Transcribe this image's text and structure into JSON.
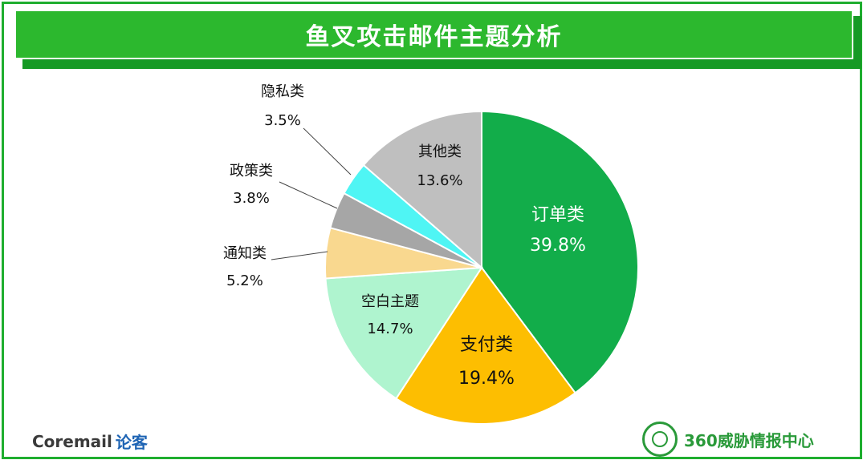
{
  "banner": {
    "title": "鱼叉攻击邮件主题分析"
  },
  "chart_data": {
    "type": "pie",
    "title": "鱼叉攻击邮件主题分析",
    "start_angle_deg": 0,
    "slices": [
      {
        "label": "订单类",
        "value": 39.8,
        "value_label": "39.8%",
        "color": "#12ad4a",
        "text_color": "#ffffff",
        "label_mode": "inside",
        "font_size": 22
      },
      {
        "label": "支付类",
        "value": 19.4,
        "value_label": "19.4%",
        "color": "#fdbe01",
        "text_color": "#111111",
        "label_mode": "inside",
        "font_size": 22
      },
      {
        "label": "空白主题",
        "value": 14.7,
        "value_label": "14.7%",
        "color": "#aff4cf",
        "text_color": "#111111",
        "label_mode": "inside",
        "font_size": 18
      },
      {
        "label": "通知类",
        "value": 5.2,
        "value_label": "5.2%",
        "color": "#f9d88f",
        "text_color": "#111111",
        "label_mode": "outside",
        "font_size": 18
      },
      {
        "label": "政策类",
        "value": 3.8,
        "value_label": "3.8%",
        "color": "#a6a6a6",
        "text_color": "#111111",
        "label_mode": "outside",
        "font_size": 18
      },
      {
        "label": "隐私类",
        "value": 3.5,
        "value_label": "3.5%",
        "color": "#4ff5f4",
        "text_color": "#111111",
        "label_mode": "outside",
        "font_size": 18
      },
      {
        "label": "其他类",
        "value": 13.6,
        "value_label": "13.6%",
        "color": "#bfbfbf",
        "text_color": "#111111",
        "label_mode": "inside",
        "font_size": 18
      }
    ]
  },
  "footer": {
    "brand_left": "Coremail",
    "brand_left_cn": "论客",
    "brand_right": "360威胁情报中心",
    "brand_right_icon": "globe-emblem-icon"
  }
}
